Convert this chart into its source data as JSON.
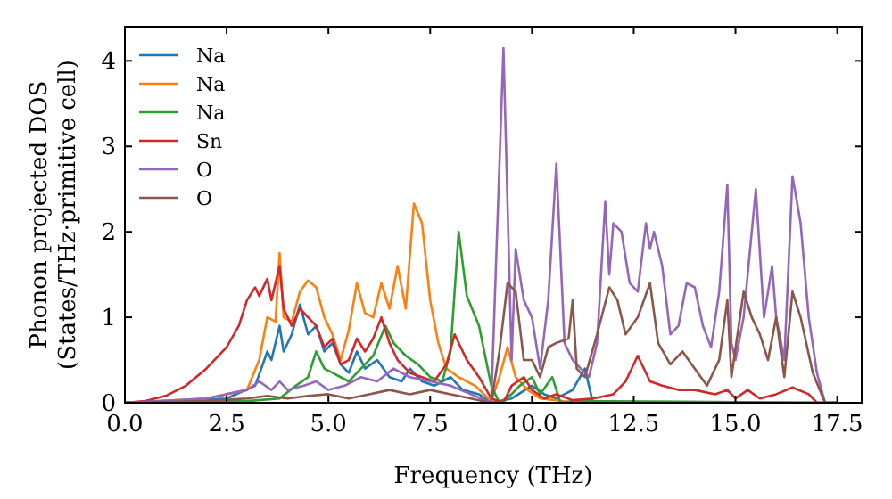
{
  "chart_data": {
    "type": "line",
    "xlabel": "Frequency (THz)",
    "ylabel": "Phonon projected DOS\n(States/THz·primitive cell)",
    "xlim": [
      0,
      18.1
    ],
    "ylim": [
      0,
      4.4
    ],
    "xticks": [
      {
        "value": 0,
        "label": "0.0"
      },
      {
        "value": 2.5,
        "label": "2.5"
      },
      {
        "value": 5,
        "label": "5.0"
      },
      {
        "value": 7.5,
        "label": "7.5"
      },
      {
        "value": 10,
        "label": "10.0"
      },
      {
        "value": 12.5,
        "label": "12.5"
      },
      {
        "value": 15,
        "label": "15.0"
      },
      {
        "value": 17.5,
        "label": "17.5"
      }
    ],
    "yticks": [
      0,
      1,
      2,
      3,
      4
    ],
    "legend": "top left",
    "grid": false,
    "marker": "none",
    "line_style": "solid",
    "series": [
      {
        "name": "Na",
        "color": "#1f77b4",
        "x": [
          0,
          2.5,
          3.2,
          3.5,
          3.6,
          3.8,
          3.9,
          4.1,
          4.3,
          4.5,
          4.7,
          4.9,
          5.1,
          5.3,
          5.5,
          5.7,
          5.9,
          6.2,
          6.5,
          6.8,
          7.0,
          7.3,
          7.6,
          8.0,
          8.3,
          8.7,
          9.0,
          9.5,
          10.0,
          10.3,
          10.6,
          11.0,
          11.3,
          11.5,
          17.5
        ],
        "values": [
          0,
          0.05,
          0.2,
          0.6,
          0.5,
          0.9,
          0.6,
          0.8,
          1.15,
          0.8,
          0.9,
          0.6,
          0.7,
          0.45,
          0.35,
          0.6,
          0.4,
          0.5,
          0.3,
          0.25,
          0.4,
          0.25,
          0.2,
          0.3,
          0.15,
          0.1,
          0,
          0.05,
          0.2,
          0.1,
          0.05,
          0.15,
          0.4,
          0,
          0
        ]
      },
      {
        "name": "Na",
        "color": "#ff7f0e",
        "x": [
          0,
          2,
          3,
          3.3,
          3.5,
          3.7,
          3.8,
          3.9,
          4.1,
          4.3,
          4.5,
          4.7,
          4.9,
          5.1,
          5.3,
          5.5,
          5.7,
          5.9,
          6.1,
          6.3,
          6.5,
          6.7,
          6.9,
          7.1,
          7.3,
          7.5,
          7.7,
          7.9,
          8.2,
          8.6,
          9.0,
          9.2,
          9.4,
          9.6,
          9.9,
          10.2,
          10.6,
          11,
          17.5
        ],
        "values": [
          0,
          0.05,
          0.15,
          0.5,
          1.0,
          0.95,
          1.75,
          1.0,
          0.95,
          1.3,
          1.43,
          1.35,
          1.0,
          0.8,
          0.5,
          0.85,
          1.4,
          1.05,
          1.0,
          1.4,
          1.1,
          1.6,
          1.1,
          2.33,
          2.1,
          1.2,
          0.7,
          0.4,
          0.3,
          0.2,
          0.02,
          0.3,
          0.65,
          0.3,
          0.15,
          0.05,
          0.03,
          0,
          0
        ]
      },
      {
        "name": "Na",
        "color": "#2ca02c",
        "x": [
          0,
          3,
          3.8,
          4.2,
          4.5,
          4.7,
          4.9,
          5.1,
          5.3,
          5.5,
          5.8,
          6.1,
          6.4,
          6.6,
          6.9,
          7.2,
          7.5,
          7.8,
          8.0,
          8.2,
          8.4,
          8.7,
          9.0,
          9.2,
          9.5,
          9.7,
          10.0,
          10.2,
          10.5,
          10.7,
          11,
          17.5
        ],
        "values": [
          0,
          0.02,
          0.05,
          0.2,
          0.3,
          0.6,
          0.4,
          0.35,
          0.3,
          0.25,
          0.4,
          0.55,
          0.9,
          0.7,
          0.55,
          0.45,
          0.3,
          0.25,
          0.6,
          2.0,
          1.25,
          0.9,
          0.2,
          0,
          0.1,
          0.2,
          0.3,
          0.1,
          0.3,
          0,
          0.02,
          0
        ]
      },
      {
        "name": "Sn",
        "color": "#d62728",
        "x": [
          0,
          0.5,
          1,
          1.5,
          2,
          2.5,
          2.8,
          3,
          3.2,
          3.3,
          3.5,
          3.6,
          3.8,
          3.9,
          4.1,
          4.3,
          4.5,
          4.7,
          4.9,
          5.1,
          5.3,
          5.5,
          5.7,
          5.9,
          6.1,
          6.3,
          6.5,
          6.7,
          7.0,
          7.3,
          7.6,
          7.9,
          8.1,
          8.4,
          8.7,
          9.0,
          9.3,
          9.5,
          9.8,
          10.0,
          10.3,
          10.6,
          11.0,
          11.5,
          12.0,
          12.3,
          12.6,
          12.9,
          13.2,
          13.6,
          14.0,
          14.5,
          14.8,
          15.0,
          15.3,
          15.6,
          16.0,
          16.4,
          16.8,
          17.0,
          17.5
        ],
        "values": [
          0,
          0.02,
          0.08,
          0.2,
          0.4,
          0.65,
          0.9,
          1.2,
          1.35,
          1.25,
          1.45,
          1.2,
          1.6,
          1.1,
          0.9,
          1.1,
          1.0,
          0.9,
          0.65,
          0.75,
          0.45,
          0.5,
          0.75,
          0.6,
          0.75,
          1.0,
          0.7,
          0.5,
          0.35,
          0.3,
          0.25,
          0.45,
          0.8,
          0.5,
          0.3,
          0.05,
          0,
          0.2,
          0.3,
          0.15,
          0.05,
          0.1,
          0.03,
          0.05,
          0.1,
          0.25,
          0.55,
          0.25,
          0.2,
          0.15,
          0.15,
          0.1,
          0.15,
          0.05,
          0.15,
          0.05,
          0.1,
          0.18,
          0.1,
          0,
          0
        ]
      },
      {
        "name": "O",
        "color": "#9467bd",
        "x": [
          0,
          2,
          3,
          3.3,
          3.6,
          3.8,
          4.0,
          4.4,
          4.7,
          5.0,
          5.4,
          5.8,
          6.2,
          6.6,
          7.0,
          7.5,
          8.0,
          8.5,
          9.0,
          9.3,
          9.5,
          9.6,
          9.8,
          10.0,
          10.2,
          10.4,
          10.6,
          10.8,
          11.0,
          11.4,
          11.6,
          11.8,
          11.9,
          12.0,
          12.2,
          12.4,
          12.6,
          12.8,
          12.9,
          13.0,
          13.2,
          13.4,
          13.6,
          13.8,
          14.0,
          14.2,
          14.4,
          14.6,
          14.8,
          14.9,
          15.0,
          15.2,
          15.5,
          15.7,
          15.9,
          16.0,
          16.2,
          16.4,
          16.6,
          16.8,
          17.0,
          17.2,
          17.5
        ],
        "values": [
          0,
          0.05,
          0.15,
          0.25,
          0.15,
          0.25,
          0.15,
          0.2,
          0.25,
          0.15,
          0.2,
          0.3,
          0.25,
          0.4,
          0.3,
          0.25,
          0.2,
          0.1,
          0,
          4.15,
          0.5,
          1.8,
          1.2,
          1.0,
          0.4,
          1.2,
          2.8,
          0.7,
          0.5,
          0.3,
          0.7,
          2.35,
          1.5,
          2.1,
          2.0,
          1.4,
          1.3,
          2.1,
          1.8,
          2.0,
          1.6,
          0.8,
          0.9,
          1.4,
          1.35,
          0.9,
          0.65,
          1.3,
          2.55,
          0.7,
          0.5,
          1.0,
          2.5,
          1.0,
          1.6,
          1.0,
          0.5,
          2.65,
          2.1,
          1.0,
          0.35,
          0,
          0
        ]
      },
      {
        "name": "O",
        "color": "#8c564b",
        "x": [
          0,
          2,
          3,
          3.5,
          4,
          4.5,
          5,
          5.5,
          6,
          6.5,
          7.0,
          7.5,
          8,
          8.5,
          9.0,
          9.2,
          9.4,
          9.6,
          9.8,
          10.0,
          10.2,
          10.4,
          10.6,
          10.9,
          11.0,
          11.1,
          11.3,
          11.6,
          11.9,
          12.1,
          12.3,
          12.6,
          12.9,
          13.1,
          13.4,
          13.7,
          14.0,
          14.3,
          14.6,
          14.8,
          14.9,
          15.2,
          15.4,
          15.6,
          15.8,
          16.0,
          16.2,
          16.4,
          16.6,
          16.9,
          17.2,
          17.5
        ],
        "values": [
          0,
          0.02,
          0.05,
          0.08,
          0.05,
          0.08,
          0.1,
          0.05,
          0.1,
          0.15,
          0.1,
          0.15,
          0.1,
          0.05,
          0,
          0.6,
          1.4,
          1.3,
          0.5,
          0.5,
          0.3,
          0.65,
          0.7,
          0.75,
          1.2,
          0.4,
          0.3,
          0.8,
          1.35,
          1.2,
          0.8,
          1.0,
          1.4,
          0.7,
          0.45,
          0.6,
          0.4,
          0.2,
          0.5,
          1.2,
          0.3,
          1.3,
          1.0,
          0.8,
          0.5,
          1.0,
          0.3,
          1.3,
          1.0,
          0.35,
          0,
          0
        ]
      }
    ]
  }
}
